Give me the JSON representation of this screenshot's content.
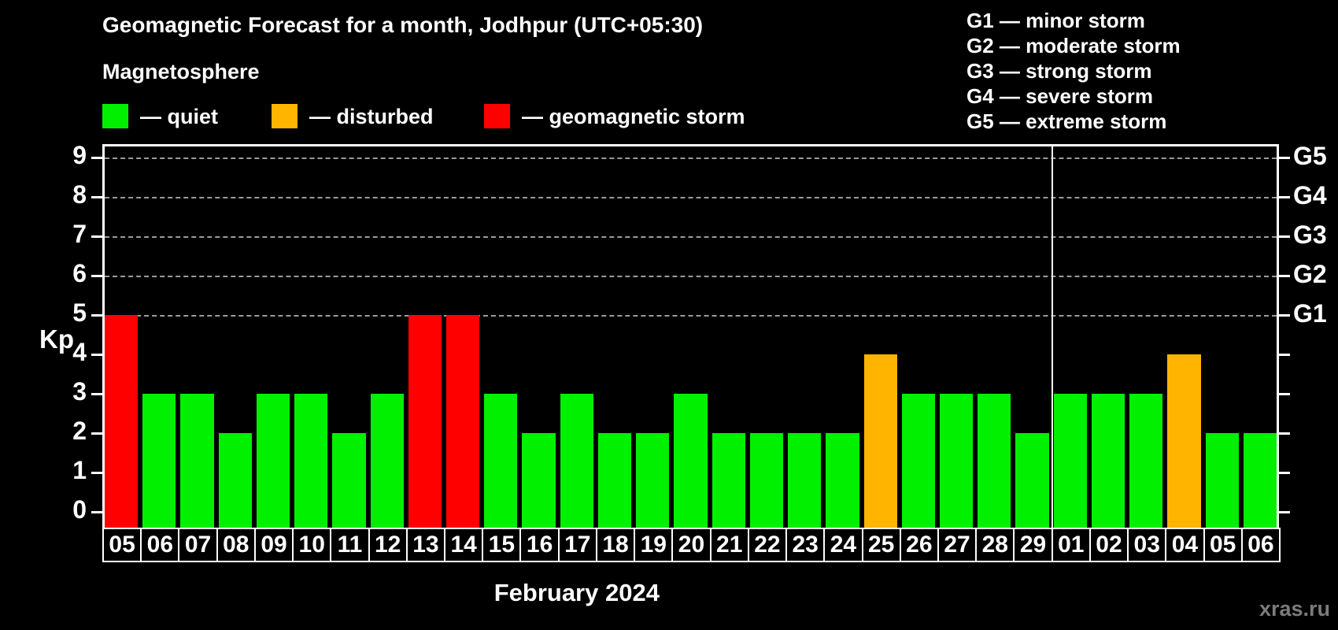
{
  "title": "Geomagnetic Forecast for a month, Jodhpur (UTC+05:30)",
  "subtitle": "Magnetosphere",
  "legend": {
    "items": [
      {
        "label": "— quiet",
        "status": "quiet",
        "color": "#00f000"
      },
      {
        "label": "— disturbed",
        "status": "disturbed",
        "color": "#ffb400"
      },
      {
        "label": "— geomagnetic storm",
        "status": "storm",
        "color": "#ff0000"
      }
    ]
  },
  "g_legend": {
    "items": [
      {
        "label": "G1 — minor storm"
      },
      {
        "label": "G2 — moderate storm"
      },
      {
        "label": "G3 — strong storm"
      },
      {
        "label": "G4 — severe storm"
      },
      {
        "label": "G5 — extreme storm"
      }
    ]
  },
  "watermark": "xras.ru",
  "chart_data": {
    "type": "bar",
    "title": "Geomagnetic Forecast for a month, Jodhpur (UTC+05:30)",
    "xlabel": "February 2024",
    "ylabel": "Kp",
    "ylim": [
      0,
      9
    ],
    "yticks": [
      0,
      1,
      2,
      3,
      4,
      5,
      6,
      7,
      8,
      9
    ],
    "gridline_levels": [
      5,
      6,
      7,
      8,
      9
    ],
    "grid": "dashed, only at storm levels G1–G5",
    "legend_position": "top-left",
    "right_axis_labels": [
      {
        "kp": 5,
        "label": "G1"
      },
      {
        "kp": 6,
        "label": "G2"
      },
      {
        "kp": 7,
        "label": "G3"
      },
      {
        "kp": 8,
        "label": "G4"
      },
      {
        "kp": 9,
        "label": "G5"
      }
    ],
    "colors": {
      "quiet": "#00f000",
      "disturbed": "#ffb400",
      "storm": "#ff0000"
    },
    "month_separator_index": 25,
    "days": [
      {
        "day": "05",
        "kp": 5,
        "status": "storm"
      },
      {
        "day": "06",
        "kp": 3,
        "status": "quiet"
      },
      {
        "day": "07",
        "kp": 3,
        "status": "quiet"
      },
      {
        "day": "08",
        "kp": 2,
        "status": "quiet"
      },
      {
        "day": "09",
        "kp": 3,
        "status": "quiet"
      },
      {
        "day": "10",
        "kp": 3,
        "status": "quiet"
      },
      {
        "day": "11",
        "kp": 2,
        "status": "quiet"
      },
      {
        "day": "12",
        "kp": 3,
        "status": "quiet"
      },
      {
        "day": "13",
        "kp": 5,
        "status": "storm"
      },
      {
        "day": "14",
        "kp": 5,
        "status": "storm"
      },
      {
        "day": "15",
        "kp": 3,
        "status": "quiet"
      },
      {
        "day": "16",
        "kp": 2,
        "status": "quiet"
      },
      {
        "day": "17",
        "kp": 3,
        "status": "quiet"
      },
      {
        "day": "18",
        "kp": 2,
        "status": "quiet"
      },
      {
        "day": "19",
        "kp": 2,
        "status": "quiet"
      },
      {
        "day": "20",
        "kp": 3,
        "status": "quiet"
      },
      {
        "day": "21",
        "kp": 2,
        "status": "quiet"
      },
      {
        "day": "22",
        "kp": 2,
        "status": "quiet"
      },
      {
        "day": "23",
        "kp": 2,
        "status": "quiet"
      },
      {
        "day": "24",
        "kp": 2,
        "status": "quiet"
      },
      {
        "day": "25",
        "kp": 4,
        "status": "disturbed"
      },
      {
        "day": "26",
        "kp": 3,
        "status": "quiet"
      },
      {
        "day": "27",
        "kp": 3,
        "status": "quiet"
      },
      {
        "day": "28",
        "kp": 3,
        "status": "quiet"
      },
      {
        "day": "29",
        "kp": 2,
        "status": "quiet"
      },
      {
        "day": "01",
        "kp": 3,
        "status": "quiet"
      },
      {
        "day": "02",
        "kp": 3,
        "status": "quiet"
      },
      {
        "day": "03",
        "kp": 3,
        "status": "quiet"
      },
      {
        "day": "04",
        "kp": 4,
        "status": "disturbed"
      },
      {
        "day": "05",
        "kp": 2,
        "status": "quiet"
      },
      {
        "day": "06",
        "kp": 2,
        "status": "quiet"
      }
    ]
  }
}
